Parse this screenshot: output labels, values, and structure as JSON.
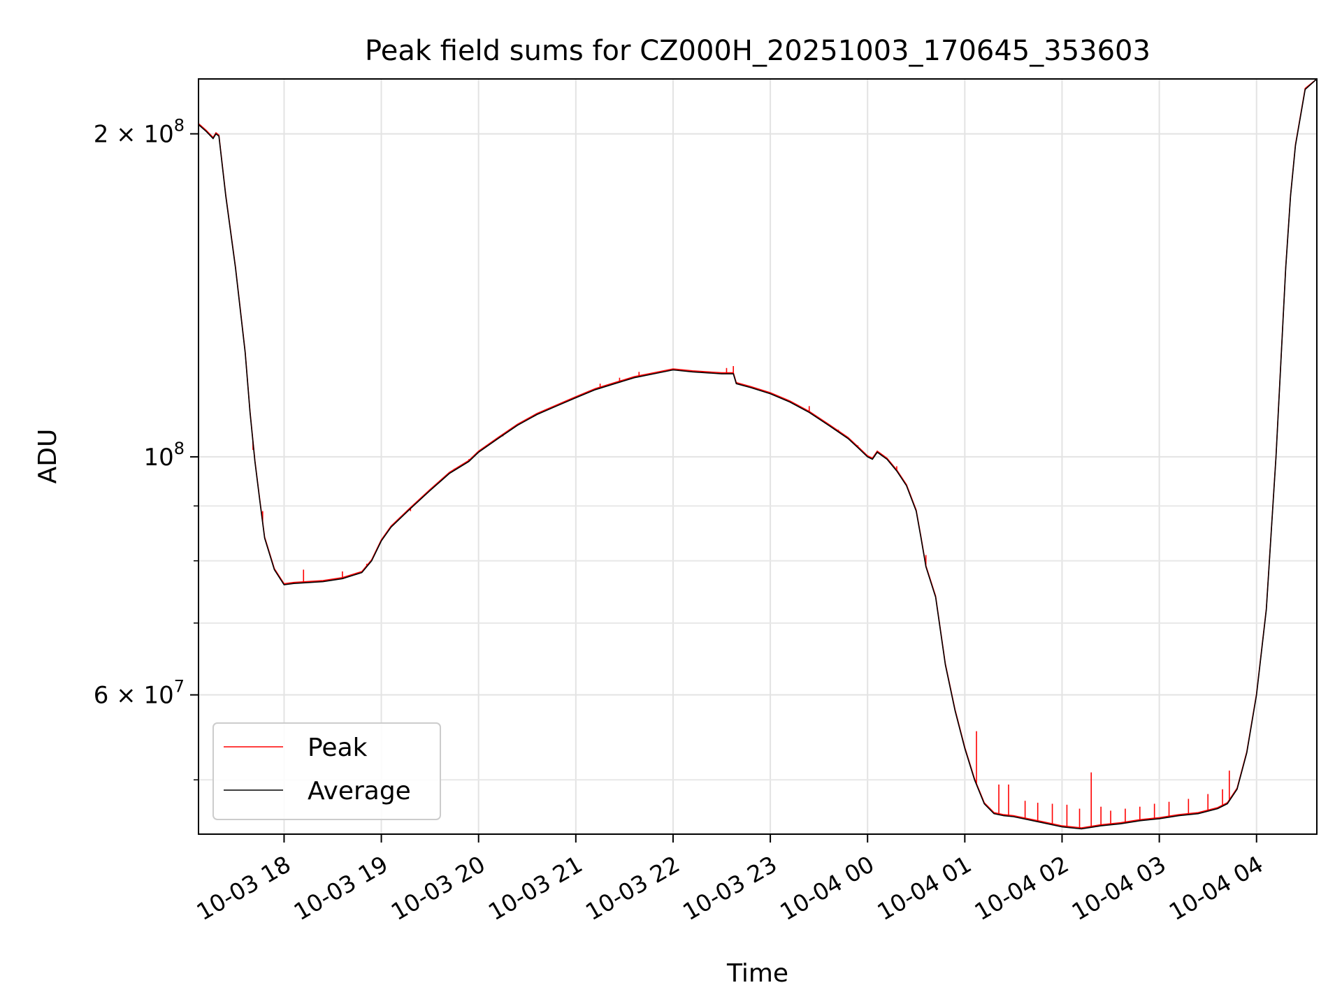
{
  "chart_data": {
    "type": "line",
    "title": "Peak field sums for CZ000H_20251003_170645_353603",
    "xlabel": "Time",
    "ylabel": "ADU",
    "yscale": "log",
    "grid": true,
    "legend_location": "lower-left",
    "x_unit": "hours since 10-03 17:00",
    "xlim": [
      0.12,
      11.62
    ],
    "ylim": [
      44500000,
      225000000
    ],
    "xticks": [
      {
        "value": 1,
        "label": "10-03 18"
      },
      {
        "value": 2,
        "label": "10-03 19"
      },
      {
        "value": 3,
        "label": "10-03 20"
      },
      {
        "value": 4,
        "label": "10-03 21"
      },
      {
        "value": 5,
        "label": "10-03 22"
      },
      {
        "value": 6,
        "label": "10-03 23"
      },
      {
        "value": 7,
        "label": "10-04 00"
      },
      {
        "value": 8,
        "label": "10-04 01"
      },
      {
        "value": 9,
        "label": "10-04 02"
      },
      {
        "value": 10,
        "label": "10-04 03"
      },
      {
        "value": 11,
        "label": "10-04 04"
      }
    ],
    "yticks_major": [
      {
        "value": 60000000,
        "mant": "6",
        "exp": "7"
      },
      {
        "value": 100000000,
        "mant": "",
        "exp": "8"
      },
      {
        "value": 200000000,
        "mant": "2",
        "exp": "8"
      }
    ],
    "yticks_minor": [
      50000000,
      70000000,
      80000000,
      90000000
    ],
    "series": [
      {
        "name": "Average",
        "color": "#000000",
        "x": [
          0.12,
          0.2,
          0.27,
          0.3,
          0.33,
          0.4,
          0.5,
          0.6,
          0.65,
          0.7,
          0.75,
          0.8,
          0.9,
          1.0,
          1.1,
          1.2,
          1.4,
          1.6,
          1.8,
          1.9,
          2.0,
          2.1,
          2.3,
          2.5,
          2.7,
          2.9,
          3.0,
          3.2,
          3.4,
          3.6,
          3.8,
          4.0,
          4.2,
          4.4,
          4.6,
          4.8,
          5.0,
          5.2,
          5.5,
          5.62,
          5.65,
          5.8,
          6.0,
          6.2,
          6.4,
          6.6,
          6.8,
          6.9,
          7.0,
          7.05,
          7.1,
          7.2,
          7.3,
          7.4,
          7.5,
          7.55,
          7.6,
          7.7,
          7.8,
          7.9,
          8.0,
          8.1,
          8.2,
          8.3,
          8.4,
          8.5,
          8.6,
          8.8,
          9.0,
          9.2,
          9.4,
          9.6,
          9.8,
          10.0,
          10.2,
          10.4,
          10.6,
          10.7,
          10.8,
          10.9,
          11.0,
          11.1,
          11.2,
          11.3,
          11.35,
          11.4,
          11.5,
          11.62
        ],
        "y": [
          204000000,
          201000000,
          198000000,
          200000000,
          199000000,
          175000000,
          150000000,
          125000000,
          110000000,
          99000000,
          91000000,
          84000000,
          78500000,
          76000000,
          76200000,
          76300000,
          76500000,
          77000000,
          78000000,
          80000000,
          83500000,
          86000000,
          89500000,
          93000000,
          96500000,
          99000000,
          101000000,
          104000000,
          107000000,
          109500000,
          111500000,
          113500000,
          115500000,
          117000000,
          118500000,
          119500000,
          120500000,
          120000000,
          119500000,
          119500000,
          117000000,
          116000000,
          114500000,
          112500000,
          110000000,
          107000000,
          104000000,
          102000000,
          100000000,
          99500000,
          101000000,
          99500000,
          97000000,
          94000000,
          89000000,
          84000000,
          79000000,
          74000000,
          64000000,
          58000000,
          53500000,
          50000000,
          47500000,
          46500000,
          46300000,
          46200000,
          46000000,
          45600000,
          45200000,
          45000000,
          45300000,
          45500000,
          45800000,
          46000000,
          46300000,
          46500000,
          47000000,
          47500000,
          49000000,
          53000000,
          60000000,
          72000000,
          100000000,
          150000000,
          175000000,
          195000000,
          220000000,
          225000000
        ]
      },
      {
        "name": "Peak",
        "color": "#ff0000",
        "spikes": [
          {
            "x": 0.68,
            "y": 101500000
          },
          {
            "x": 0.78,
            "y": 89000000
          },
          {
            "x": 1.2,
            "y": 78500000
          },
          {
            "x": 1.6,
            "y": 78200000
          },
          {
            "x": 1.85,
            "y": 79500000
          },
          {
            "x": 2.2,
            "y": 88000000
          },
          {
            "x": 2.3,
            "y": 89000000
          },
          {
            "x": 2.75,
            "y": 97500000
          },
          {
            "x": 2.9,
            "y": 99500000
          },
          {
            "x": 3.15,
            "y": 103500000
          },
          {
            "x": 3.25,
            "y": 104500000
          },
          {
            "x": 4.25,
            "y": 117000000
          },
          {
            "x": 4.45,
            "y": 118500000
          },
          {
            "x": 4.65,
            "y": 120000000
          },
          {
            "x": 5.55,
            "y": 121000000
          },
          {
            "x": 5.62,
            "y": 121500000
          },
          {
            "x": 6.4,
            "y": 111500000
          },
          {
            "x": 6.7,
            "y": 106000000
          },
          {
            "x": 6.9,
            "y": 102500000
          },
          {
            "x": 7.3,
            "y": 98000000
          },
          {
            "x": 7.6,
            "y": 81000000
          },
          {
            "x": 8.12,
            "y": 55500000
          },
          {
            "x": 8.35,
            "y": 49500000
          },
          {
            "x": 8.45,
            "y": 49500000
          },
          {
            "x": 8.62,
            "y": 47800000
          },
          {
            "x": 8.75,
            "y": 47600000
          },
          {
            "x": 8.9,
            "y": 47500000
          },
          {
            "x": 9.05,
            "y": 47400000
          },
          {
            "x": 9.18,
            "y": 47000000
          },
          {
            "x": 9.3,
            "y": 50800000
          },
          {
            "x": 9.4,
            "y": 47200000
          },
          {
            "x": 9.5,
            "y": 46800000
          },
          {
            "x": 9.65,
            "y": 47000000
          },
          {
            "x": 9.8,
            "y": 47200000
          },
          {
            "x": 9.95,
            "y": 47500000
          },
          {
            "x": 10.1,
            "y": 47700000
          },
          {
            "x": 10.3,
            "y": 48000000
          },
          {
            "x": 10.5,
            "y": 48500000
          },
          {
            "x": 10.65,
            "y": 49000000
          },
          {
            "x": 10.72,
            "y": 51000000
          }
        ]
      }
    ],
    "legend": [
      {
        "label": "Peak",
        "color": "#ff0000"
      },
      {
        "label": "Average",
        "color": "#000000"
      }
    ]
  }
}
